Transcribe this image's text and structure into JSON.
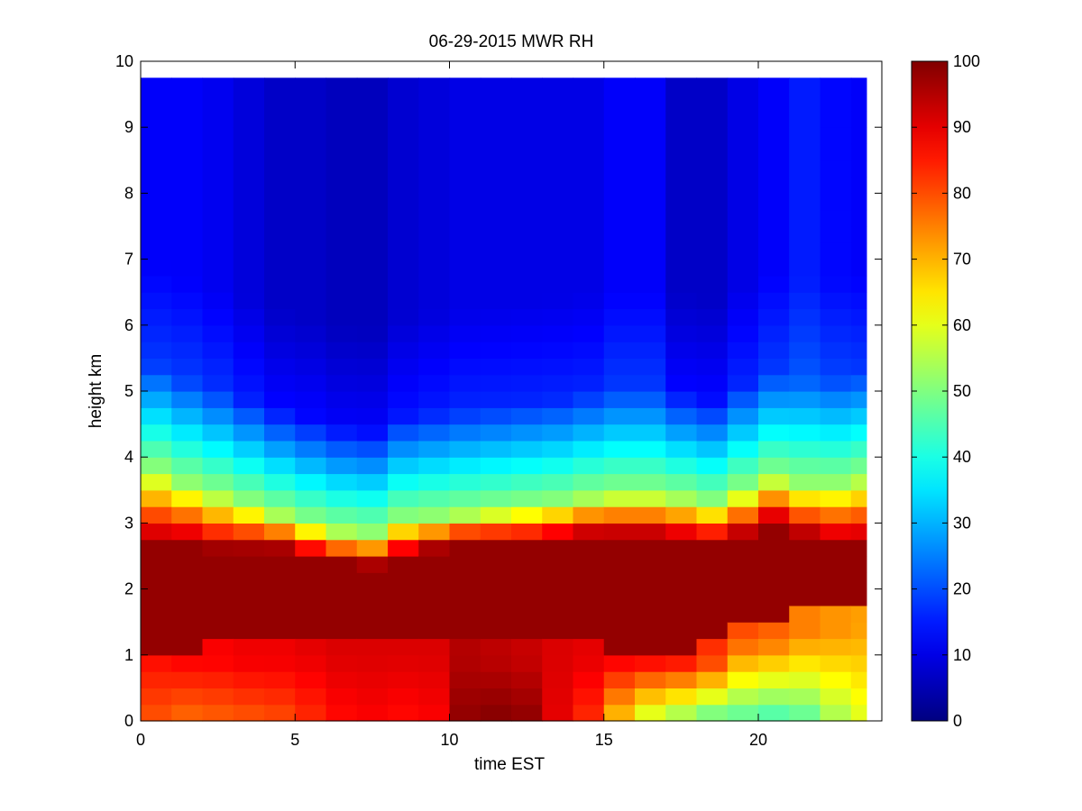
{
  "chart_data": {
    "type": "heatmap",
    "title": "06-29-2015 MWR RH",
    "xlabel": "time EST",
    "ylabel": "height km",
    "xlim": [
      0,
      24
    ],
    "ylim": [
      0,
      10
    ],
    "xticks": [
      0,
      5,
      10,
      15,
      20
    ],
    "yticks": [
      0,
      1,
      2,
      3,
      4,
      5,
      6,
      7,
      8,
      9,
      10
    ],
    "data_time_range": [
      0,
      23.5
    ],
    "data_height_range": [
      0,
      9.75
    ],
    "colormap": "jet",
    "colorbar": {
      "min": 0,
      "max": 100,
      "ticks": [
        0,
        10,
        20,
        30,
        40,
        50,
        60,
        70,
        80,
        90,
        100
      ]
    },
    "columns": [
      {
        "time": 0.0,
        "surface": 80,
        "low": 86,
        "moist_lo": 1.1,
        "moist_hi": 2.7,
        "top": 3.8,
        "upper": 12
      },
      {
        "time": 1.0,
        "surface": 78,
        "low": 87,
        "moist_lo": 1.1,
        "moist_hi": 2.7,
        "top": 3.6,
        "upper": 12
      },
      {
        "time": 2.0,
        "surface": 79,
        "low": 88,
        "moist_lo": 1.2,
        "moist_hi": 2.6,
        "top": 3.45,
        "upper": 11
      },
      {
        "time": 3.0,
        "surface": 80,
        "low": 89,
        "moist_lo": 1.2,
        "moist_hi": 2.6,
        "top": 3.3,
        "upper": 9
      },
      {
        "time": 4.0,
        "surface": 81,
        "low": 89,
        "moist_lo": 1.2,
        "moist_hi": 2.6,
        "top": 3.15,
        "upper": 7
      },
      {
        "time": 5.0,
        "surface": 84,
        "low": 90,
        "moist_lo": 1.3,
        "moist_hi": 2.5,
        "top": 3.0,
        "upper": 7
      },
      {
        "time": 6.0,
        "surface": 87,
        "low": 91,
        "moist_lo": 1.3,
        "moist_hi": 2.4,
        "top": 2.9,
        "upper": 6
      },
      {
        "time": 7.0,
        "surface": 88,
        "low": 91,
        "moist_lo": 1.3,
        "moist_hi": 2.35,
        "top": 2.85,
        "upper": 6
      },
      {
        "time": 8.0,
        "surface": 87,
        "low": 91,
        "moist_lo": 1.3,
        "moist_hi": 2.5,
        "top": 3.05,
        "upper": 8
      },
      {
        "time": 9.0,
        "surface": 88,
        "low": 91,
        "moist_lo": 1.3,
        "moist_hi": 2.6,
        "top": 3.1,
        "upper": 9
      },
      {
        "time": 10.0,
        "surface": 98,
        "low": 95,
        "moist_lo": 1.2,
        "moist_hi": 2.7,
        "top": 3.15,
        "upper": 10
      },
      {
        "time": 11.0,
        "surface": 99,
        "low": 94,
        "moist_lo": 1.2,
        "moist_hi": 2.7,
        "top": 3.2,
        "upper": 10
      },
      {
        "time": 12.0,
        "surface": 98,
        "low": 93,
        "moist_lo": 1.2,
        "moist_hi": 2.7,
        "top": 3.25,
        "upper": 10
      },
      {
        "time": 13.0,
        "surface": 90,
        "low": 91,
        "moist_lo": 1.2,
        "moist_hi": 2.75,
        "top": 3.3,
        "upper": 10
      },
      {
        "time": 14.0,
        "surface": 84,
        "low": 90,
        "moist_lo": 1.2,
        "moist_hi": 2.8,
        "top": 3.4,
        "upper": 10
      },
      {
        "time": 15.0,
        "surface": 70,
        "low": 87,
        "moist_lo": 1.1,
        "moist_hi": 2.8,
        "top": 3.45,
        "upper": 12
      },
      {
        "time": 16.0,
        "surface": 60,
        "low": 86,
        "moist_lo": 1.1,
        "moist_hi": 2.8,
        "top": 3.45,
        "upper": 12
      },
      {
        "time": 17.0,
        "surface": 55,
        "low": 85,
        "moist_lo": 1.1,
        "moist_hi": 2.75,
        "top": 3.4,
        "upper": 7
      },
      {
        "time": 18.0,
        "surface": 50,
        "low": 83,
        "moist_lo": 1.2,
        "moist_hi": 2.7,
        "top": 3.3,
        "upper": 7
      },
      {
        "time": 19.0,
        "surface": 48,
        "low": 80,
        "moist_lo": 1.6,
        "moist_hi": 2.8,
        "top": 3.5,
        "upper": 10
      },
      {
        "time": 20.0,
        "surface": 46,
        "low": 78,
        "moist_lo": 1.6,
        "moist_hi": 3.0,
        "top": 3.7,
        "upper": 12
      },
      {
        "time": 21.0,
        "surface": 48,
        "low": 75,
        "moist_lo": 1.7,
        "moist_hi": 2.8,
        "top": 3.6,
        "upper": 15
      },
      {
        "time": 22.0,
        "surface": 55,
        "low": 73,
        "moist_lo": 1.7,
        "moist_hi": 2.7,
        "top": 3.6,
        "upper": 13
      },
      {
        "time": 23.0,
        "surface": 60,
        "low": 72,
        "moist_lo": 1.8,
        "moist_hi": 2.7,
        "top": 3.7,
        "upper": 12
      }
    ]
  }
}
